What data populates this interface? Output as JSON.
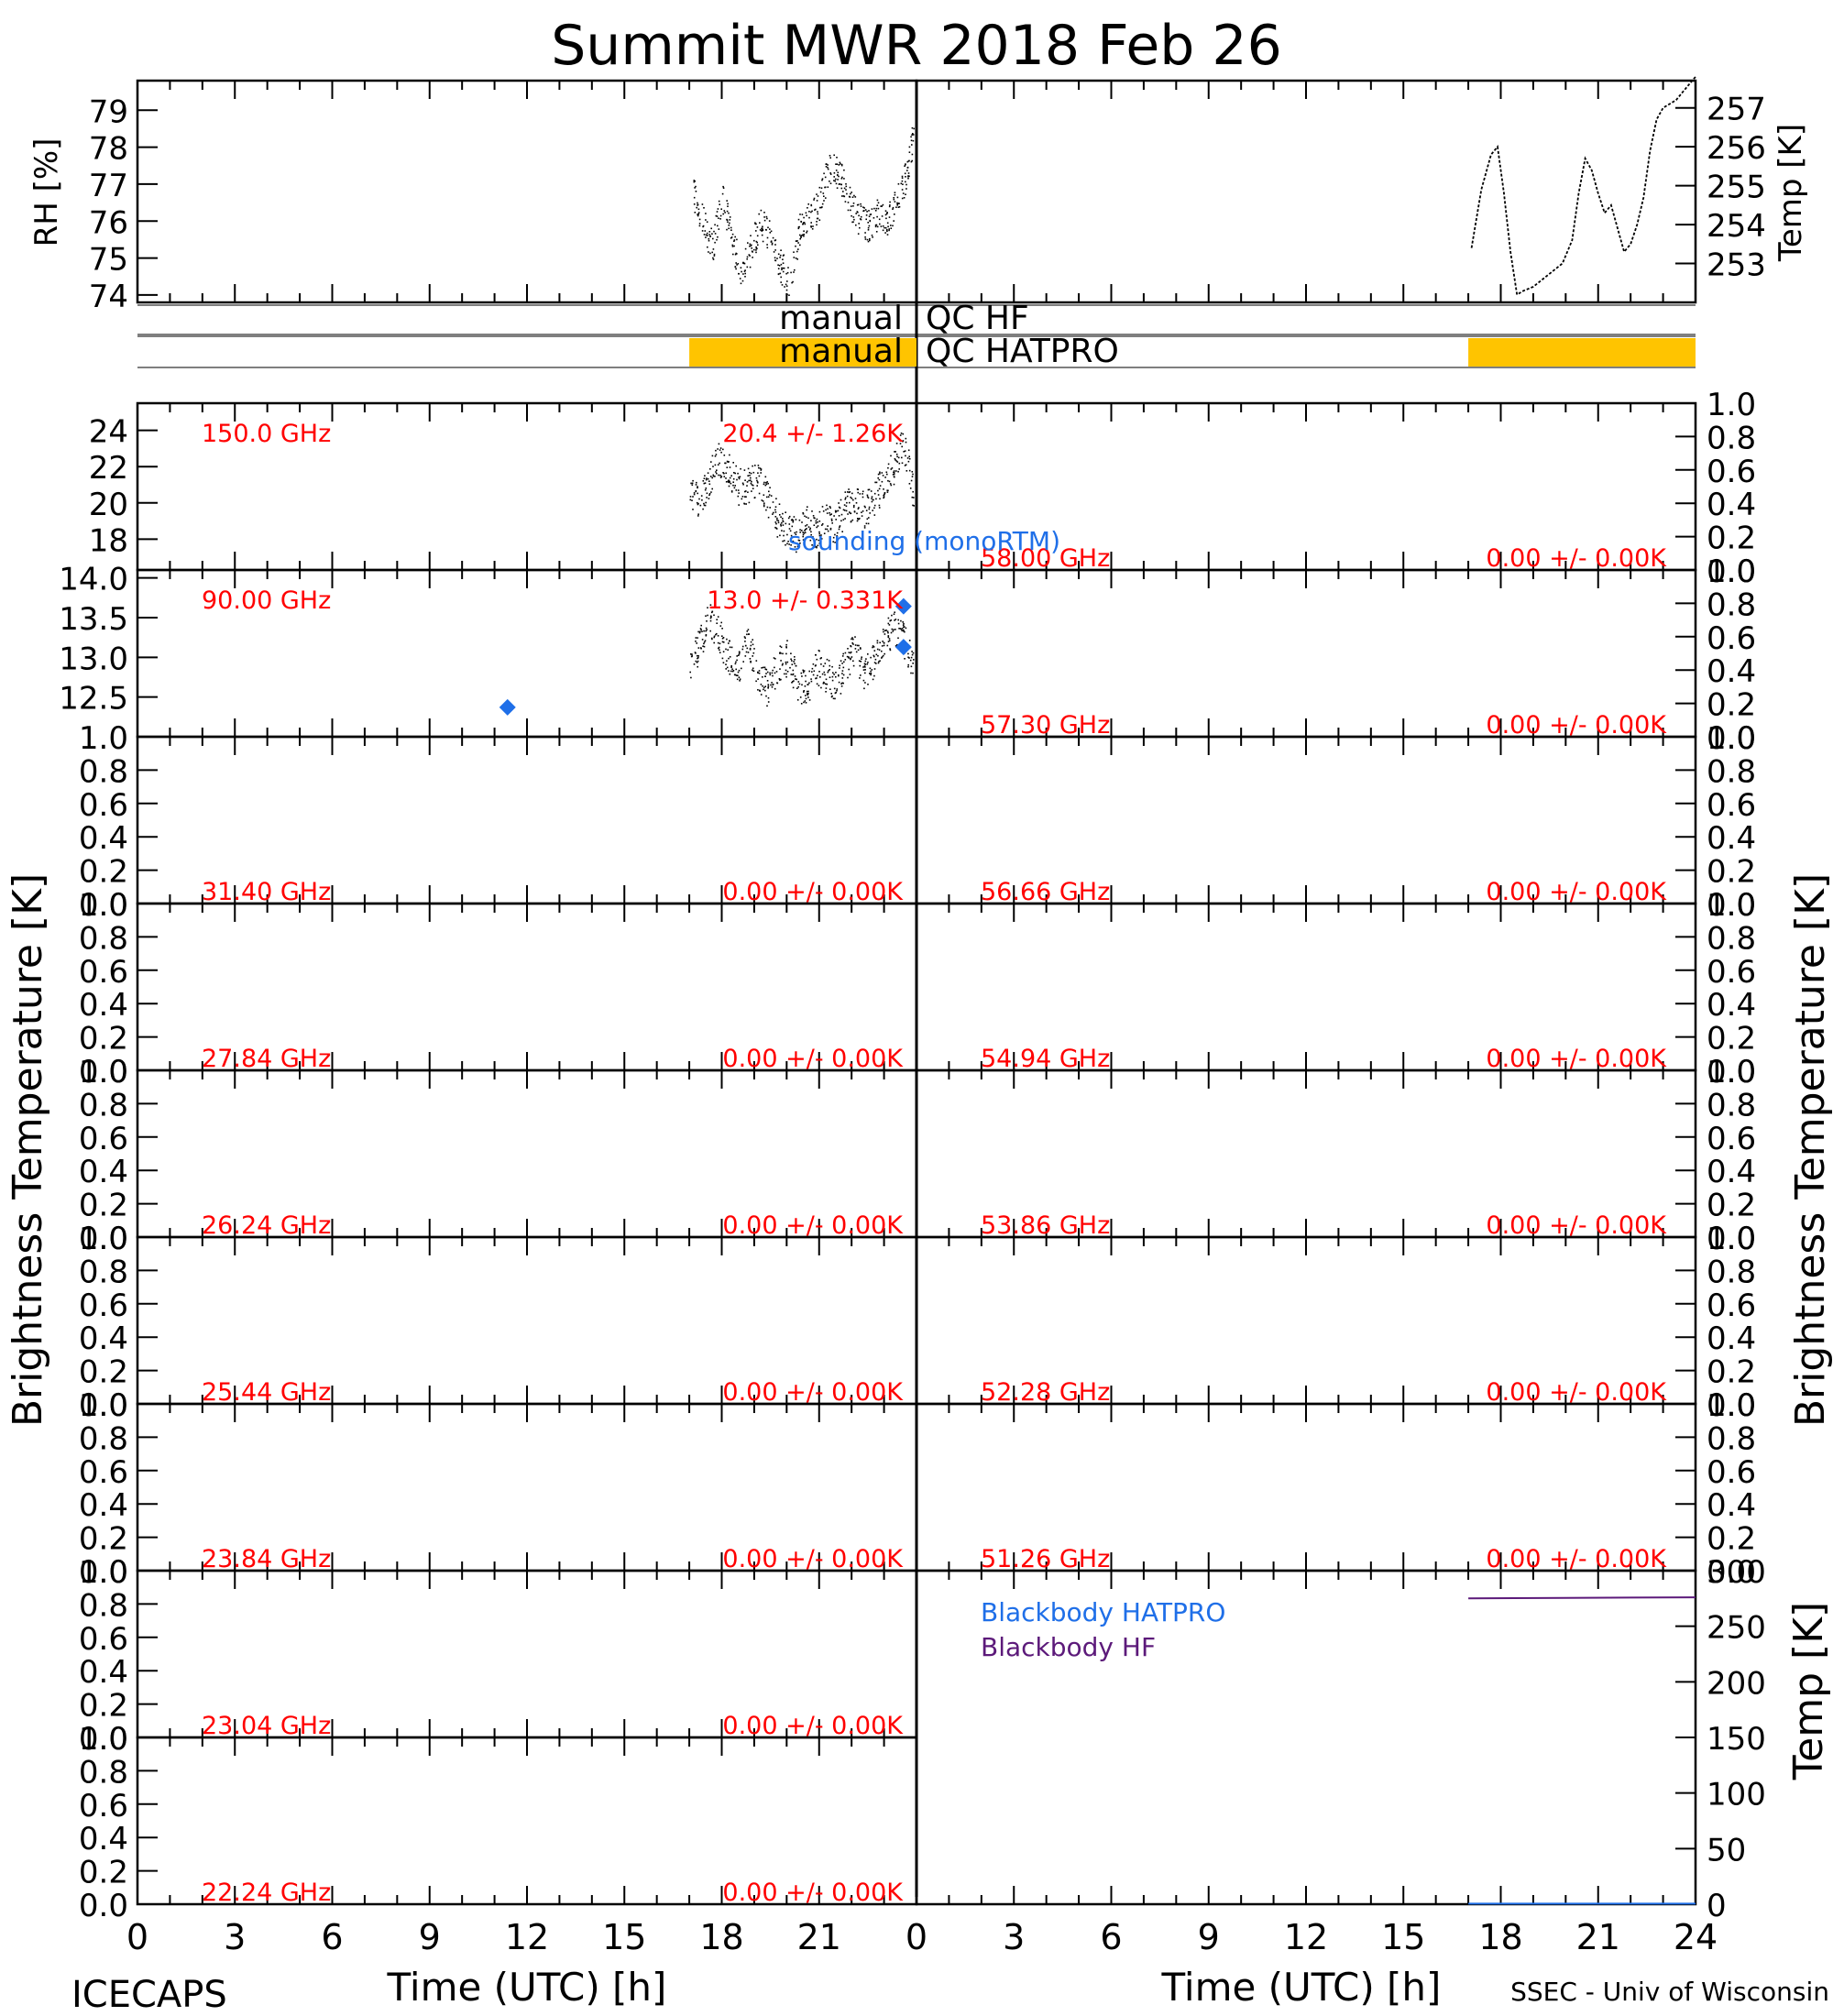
{
  "title": "Summit MWR 2018 Feb 26",
  "footer": {
    "left": "ICECAPS",
    "right": "SSEC - Univ of Wisconsin"
  },
  "colors": {
    "red": "#ff0000",
    "blue": "#1f6fe8",
    "purple": "#5c1a7a",
    "qc": "#ffc400",
    "ink": "#000000"
  },
  "chart_data": {
    "type": "line",
    "xticks": [
      "0",
      "3",
      "6",
      "9",
      "12",
      "15",
      "18",
      "21"
    ],
    "xticks_right": [
      "0",
      "3",
      "6",
      "9",
      "12",
      "15",
      "18",
      "21",
      "24"
    ],
    "xlabel": "Time (UTC) [h]",
    "xlim": [
      0,
      24
    ],
    "ylabel_tb": "Brightness Temperature [K]",
    "met": {
      "rh": {
        "ylabel": "RH [%]",
        "ylim": [
          73.8,
          79.8
        ],
        "ticks": [
          "74",
          "75",
          "76",
          "77",
          "78",
          "79"
        ],
        "x": [
          17.1,
          17.4,
          17.7,
          18.0,
          18.3,
          18.6,
          18.9,
          19.2,
          19.5,
          19.8,
          20.1,
          20.4,
          20.7,
          21.0,
          21.3,
          21.6,
          21.9,
          22.2,
          22.5,
          22.8,
          23.1,
          23.4,
          23.7,
          23.9
        ],
        "y": [
          76.8,
          76.0,
          75.3,
          76.7,
          75.5,
          74.6,
          75.3,
          76.0,
          75.5,
          74.8,
          74.3,
          75.9,
          76.1,
          76.5,
          77.5,
          77.3,
          76.6,
          76.1,
          75.9,
          76.2,
          76.0,
          76.7,
          77.3,
          78.4
        ]
      },
      "temp": {
        "ylabel": "Temp [K]",
        "ylim": [
          252.0,
          257.7
        ],
        "ticks": [
          "253",
          "254",
          "255",
          "256",
          "257"
        ],
        "x": [
          17.1,
          17.4,
          17.7,
          17.9,
          18.1,
          18.3,
          18.5,
          18.7,
          19.0,
          19.3,
          19.6,
          19.9,
          20.2,
          20.4,
          20.6,
          20.8,
          21.0,
          21.2,
          21.4,
          21.6,
          21.8,
          22.0,
          22.2,
          22.4,
          22.6,
          22.8,
          23.0,
          23.2,
          23.4,
          23.6,
          23.8,
          24.0
        ],
        "y": [
          253.4,
          254.9,
          255.8,
          256.0,
          254.8,
          253.3,
          252.2,
          252.3,
          252.4,
          252.6,
          252.8,
          253.0,
          253.6,
          254.8,
          255.7,
          255.4,
          254.8,
          254.3,
          254.5,
          253.9,
          253.3,
          253.5,
          254.0,
          254.7,
          255.9,
          256.7,
          257.0,
          257.1,
          257.2,
          257.4,
          257.6,
          257.8
        ]
      }
    },
    "qc": [
      {
        "label_left": "manual",
        "label_right": "QC HF",
        "flagged": []
      },
      {
        "label_left": "manual",
        "label_right": "QC HATPRO",
        "flagged": [
          [
            17.0,
            24.0
          ]
        ]
      }
    ],
    "channels": [
      {
        "freq": "150.0 GHz",
        "stat": "20.4 +/-  1.26K",
        "ylim": [
          16.3,
          25.5
        ],
        "ticks": [
          "18",
          "20",
          "22",
          "24"
        ],
        "sounding": [
          23.6
        ],
        "sounding_y": [
          14.3
        ],
        "label_top": true,
        "x": [
          17.0,
          17.3,
          17.6,
          17.9,
          18.2,
          18.5,
          18.8,
          19.1,
          19.4,
          19.7,
          20.0,
          20.3,
          20.6,
          20.9,
          21.2,
          21.5,
          21.8,
          22.1,
          22.4,
          22.7,
          23.0,
          23.3,
          23.6,
          23.9
        ],
        "y": [
          20.6,
          20.2,
          21.3,
          22.5,
          21.8,
          20.9,
          21.0,
          21.5,
          20.3,
          19.1,
          18.6,
          18.2,
          19.0,
          18.4,
          19.1,
          18.8,
          19.8,
          20.1,
          19.6,
          20.4,
          21.2,
          22.1,
          23.3,
          20.5
        ]
      },
      {
        "freq": "90.00 GHz",
        "stat": "13.0 +/- 0.331K",
        "ylim": [
          12.0,
          14.1
        ],
        "ticks": [
          "12.5",
          "13.0",
          "13.5",
          "14.0"
        ],
        "sounding": [
          11.4,
          23.6
        ],
        "sounding_y": [
          12.37,
          13.13
        ],
        "label_top": true,
        "x": [
          17.0,
          17.3,
          17.6,
          17.9,
          18.2,
          18.5,
          18.8,
          19.1,
          19.4,
          19.7,
          20.0,
          20.3,
          20.6,
          20.9,
          21.2,
          21.5,
          21.8,
          22.1,
          22.4,
          22.7,
          23.0,
          23.3,
          23.6,
          23.9
        ],
        "y": [
          12.8,
          13.2,
          13.5,
          13.3,
          13.0,
          12.9,
          13.2,
          12.8,
          12.6,
          12.9,
          13.0,
          12.7,
          12.6,
          12.9,
          12.8,
          12.6,
          12.9,
          13.1,
          12.8,
          13.0,
          13.2,
          13.4,
          13.2,
          12.9
        ]
      },
      {
        "freq": "31.40 GHz",
        "stat": "0.00 +/-  0.00K"
      },
      {
        "freq": "27.84 GHz",
        "stat": "0.00 +/-  0.00K"
      },
      {
        "freq": "26.24 GHz",
        "stat": "0.00 +/-  0.00K"
      },
      {
        "freq": "25.44 GHz",
        "stat": "0.00 +/-  0.00K"
      },
      {
        "freq": "23.84 GHz",
        "stat": "0.00 +/-  0.00K"
      },
      {
        "freq": "23.04 GHz",
        "stat": "0.00 +/-  0.00K"
      },
      {
        "freq": "22.24 GHz",
        "stat": "0.00 +/-  0.00K"
      },
      {
        "freq": "58.00 GHz",
        "stat": "0.00 +/-  0.00K"
      },
      {
        "freq": "57.30 GHz",
        "stat": "0.00 +/-  0.00K"
      },
      {
        "freq": "56.66 GHz",
        "stat": "0.00 +/-  0.00K"
      },
      {
        "freq": "54.94 GHz",
        "stat": "0.00 +/-  0.00K"
      },
      {
        "freq": "53.86 GHz",
        "stat": "0.00 +/-  0.00K"
      },
      {
        "freq": "52.28 GHz",
        "stat": "0.00 +/-  0.00K"
      },
      {
        "freq": "51.26 GHz",
        "stat": "0.00 +/-  0.00K"
      }
    ],
    "empty_ticks": [
      "0.0",
      "0.2",
      "0.4",
      "0.6",
      "0.8",
      "1.0"
    ],
    "sounding_label": "sounding (monoRTM)",
    "blackbody": {
      "ylabel": "Temp [K]",
      "ylim": [
        0,
        300
      ],
      "ticks": [
        "0",
        "50",
        "100",
        "150",
        "200",
        "250",
        "300"
      ],
      "series": [
        {
          "name": "Blackbody HATPRO",
          "x": [
            17.0,
            24.0
          ],
          "y": [
            0.5,
            0.5
          ]
        },
        {
          "name": "Blackbody HF",
          "x": [
            17.0,
            20.0,
            24.0
          ],
          "y": [
            275.0,
            275.5,
            276.0
          ]
        }
      ]
    }
  }
}
